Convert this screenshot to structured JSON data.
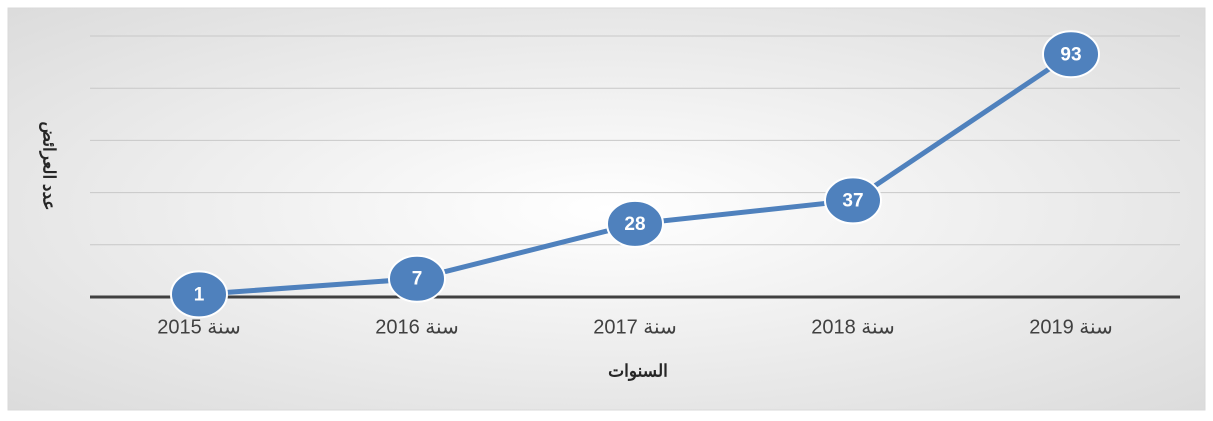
{
  "chart_data": {
    "type": "line",
    "x_label": "السنوات",
    "y_label": "عدد العرائض",
    "categories": [
      "سنة 2015",
      "سنة 2016",
      "سنة 2017",
      "سنة 2018",
      "سنة 2019"
    ],
    "values": [
      1,
      7,
      28,
      37,
      93
    ],
    "color": "#4f81bd",
    "ylim": [
      0,
      100
    ],
    "yticks": [
      0,
      20,
      40,
      60,
      80,
      100
    ],
    "grid": true
  }
}
